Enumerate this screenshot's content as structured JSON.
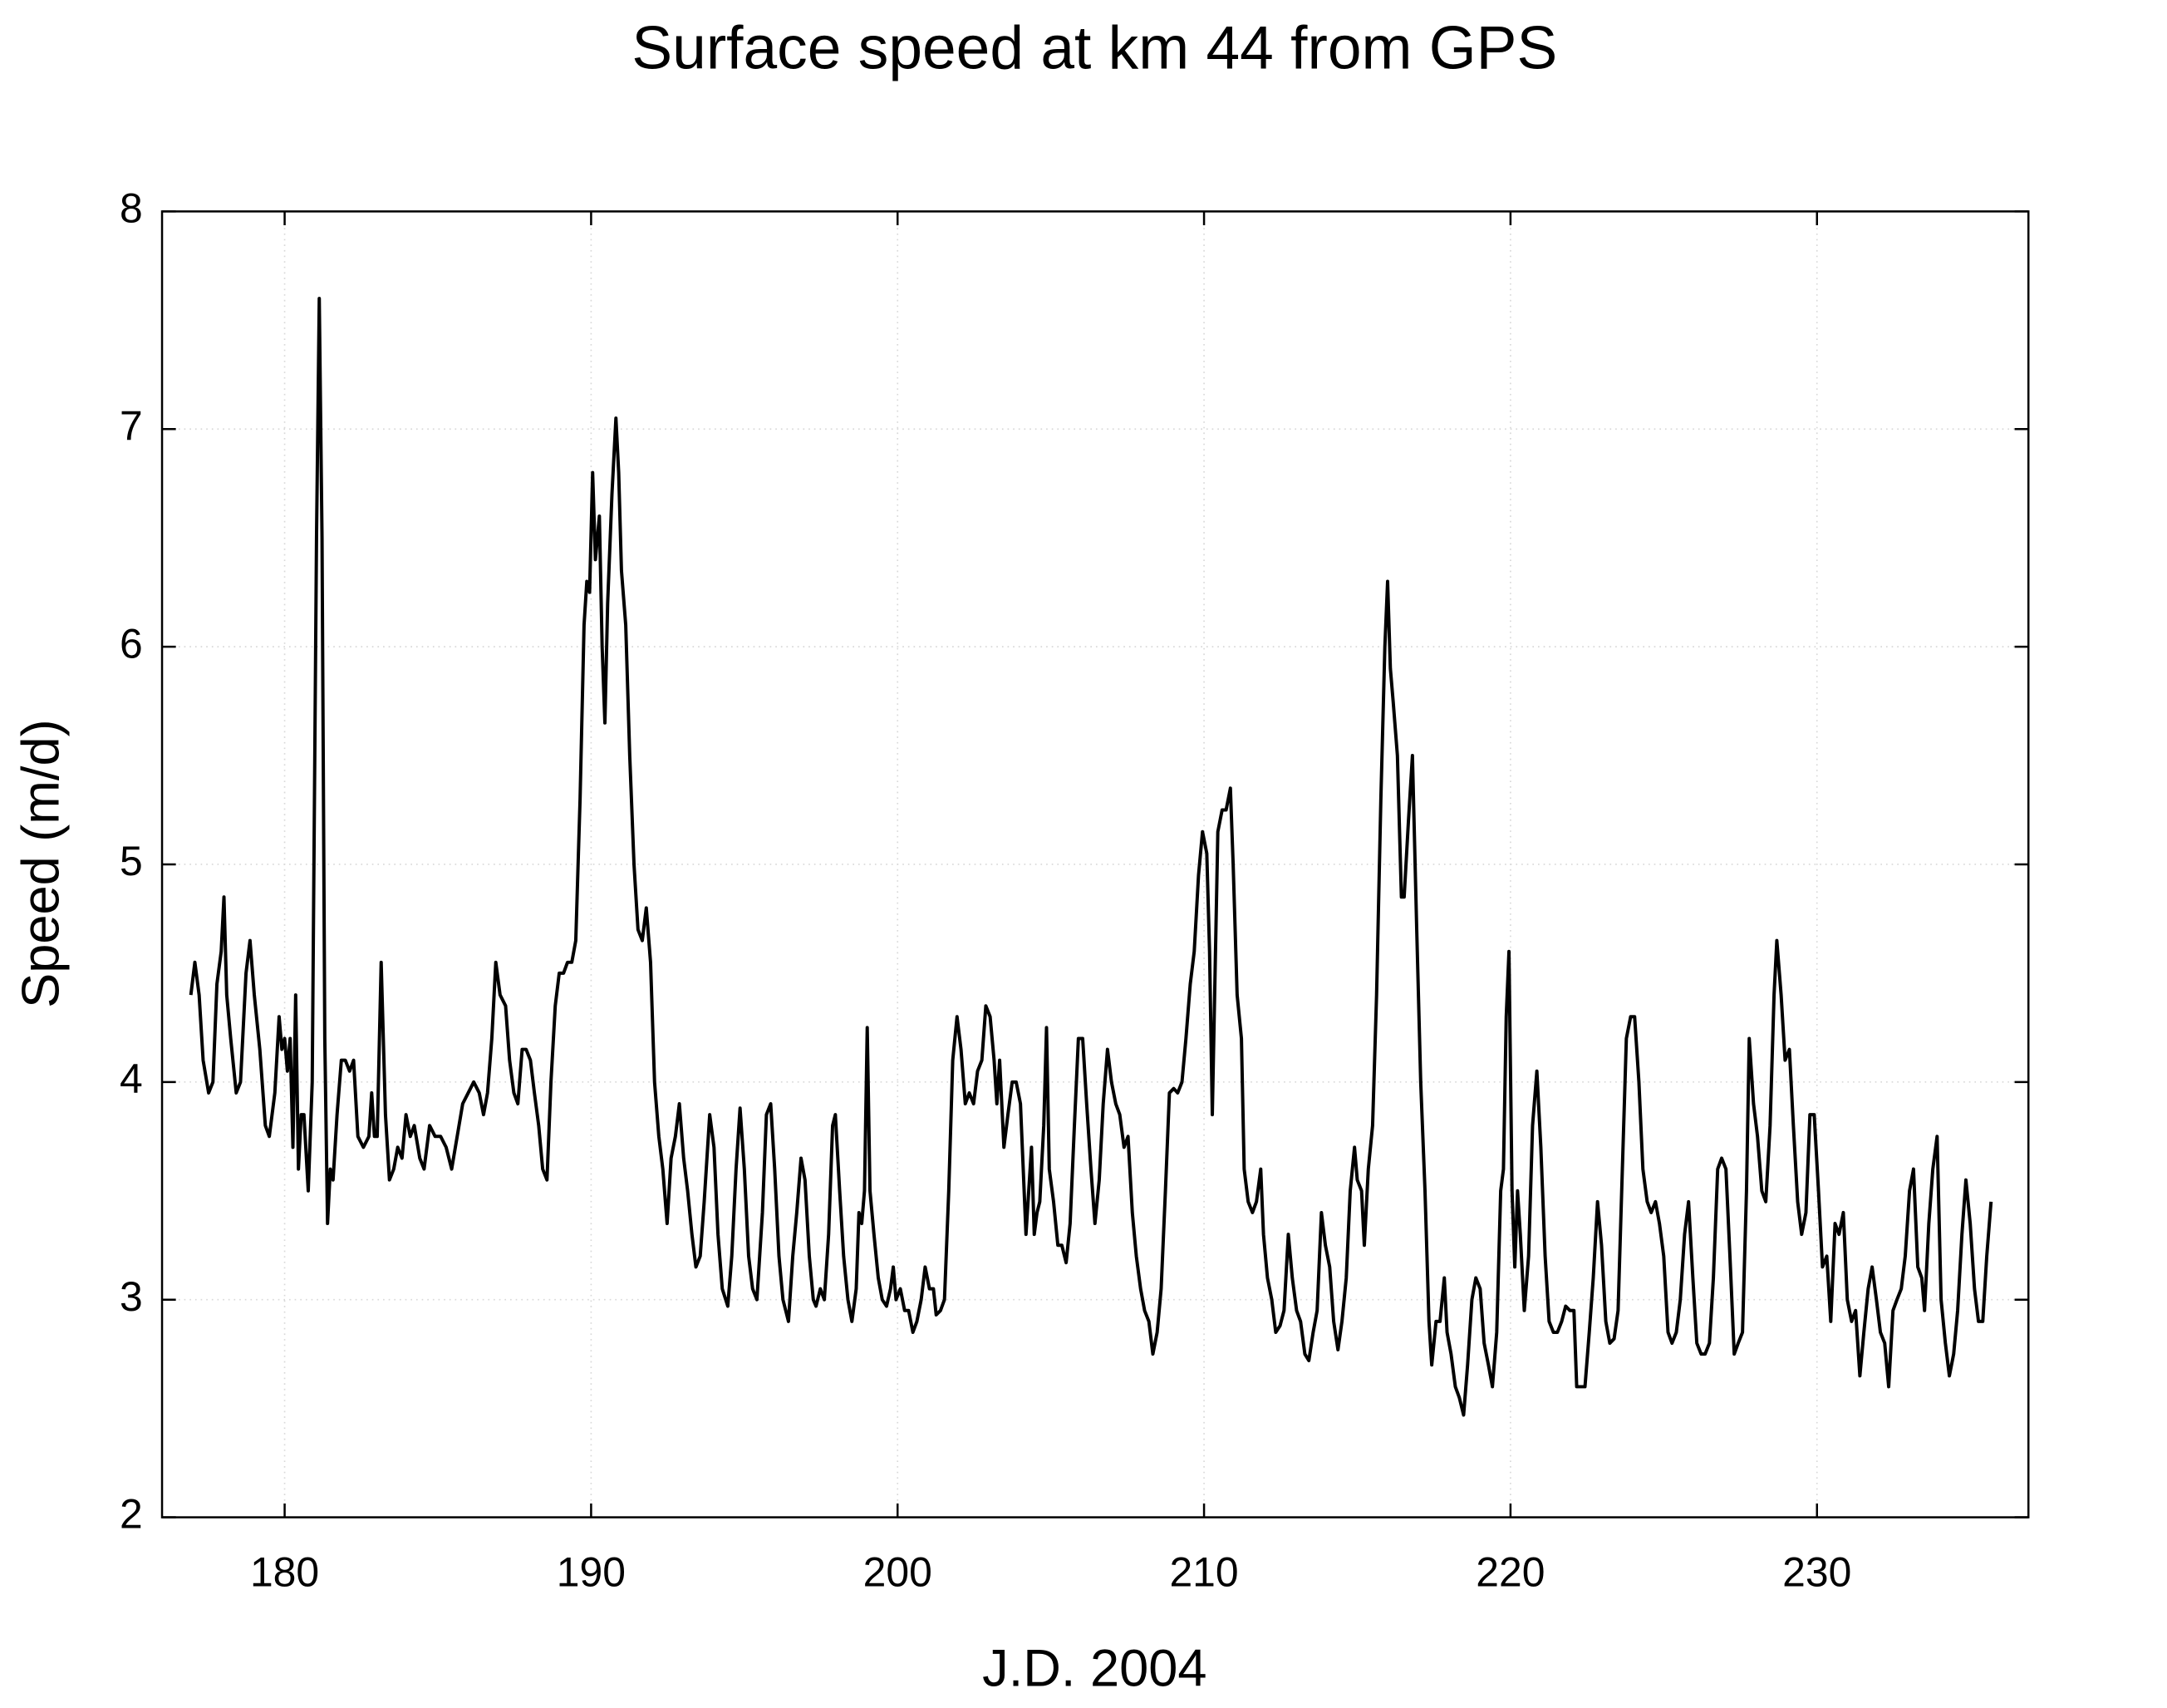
{
  "chart_data": {
    "type": "line",
    "title": "Surface speed at km 44 from GPS",
    "x_label": "J.D. 2004",
    "y_label": "Speed (m/d)",
    "xlim": [
      176,
      236.9
    ],
    "ylim": [
      2,
      8
    ],
    "xticks": [
      180,
      190,
      200,
      210,
      220,
      230
    ],
    "yticks": [
      2,
      3,
      4,
      5,
      6,
      7,
      8
    ],
    "grid": true,
    "x": [
      176.94,
      177.07,
      177.21,
      177.34,
      177.52,
      177.66,
      177.79,
      177.93,
      178.02,
      178.11,
      178.24,
      178.42,
      178.56,
      178.74,
      178.87,
      179.01,
      179.19,
      179.37,
      179.5,
      179.68,
      179.82,
      179.91,
      180.0,
      180.09,
      180.18,
      180.27,
      180.36,
      180.45,
      180.54,
      180.63,
      180.77,
      180.9,
      181.04,
      181.13,
      181.22,
      181.31,
      181.4,
      181.49,
      181.58,
      181.71,
      181.85,
      181.98,
      182.12,
      182.25,
      182.39,
      182.57,
      182.75,
      182.84,
      182.93,
      183.02,
      183.15,
      183.29,
      183.42,
      183.56,
      183.69,
      183.83,
      183.96,
      184.1,
      184.23,
      184.41,
      184.55,
      184.73,
      184.91,
      185.09,
      185.27,
      185.45,
      185.63,
      185.81,
      185.99,
      186.17,
      186.35,
      186.49,
      186.62,
      186.76,
      186.89,
      187.03,
      187.21,
      187.34,
      187.48,
      187.61,
      187.75,
      187.88,
      188.02,
      188.15,
      188.29,
      188.42,
      188.56,
      188.69,
      188.83,
      188.96,
      189.1,
      189.23,
      189.37,
      189.5,
      189.64,
      189.77,
      189.86,
      189.95,
      190.05,
      190.14,
      190.27,
      190.36,
      190.45,
      190.54,
      190.68,
      190.81,
      190.9,
      190.99,
      191.13,
      191.26,
      191.4,
      191.53,
      191.67,
      191.8,
      191.94,
      192.07,
      192.21,
      192.34,
      192.48,
      192.61,
      192.75,
      192.88,
      193.02,
      193.15,
      193.29,
      193.42,
      193.56,
      193.69,
      193.87,
      194.01,
      194.14,
      194.28,
      194.46,
      194.59,
      194.73,
      194.86,
      195.0,
      195.14,
      195.27,
      195.41,
      195.59,
      195.72,
      195.86,
      195.99,
      196.13,
      196.26,
      196.44,
      196.58,
      196.71,
      196.85,
      196.98,
      197.12,
      197.25,
      197.34,
      197.48,
      197.61,
      197.75,
      197.88,
      197.97,
      198.11,
      198.24,
      198.38,
      198.51,
      198.65,
      198.74,
      198.83,
      198.92,
      199.01,
      199.1,
      199.23,
      199.37,
      199.5,
      199.64,
      199.77,
      199.86,
      199.95,
      200.09,
      200.23,
      200.36,
      200.5,
      200.63,
      200.77,
      200.9,
      201.04,
      201.17,
      201.26,
      201.4,
      201.53,
      201.67,
      201.8,
      201.94,
      202.07,
      202.21,
      202.34,
      202.48,
      202.61,
      202.75,
      202.88,
      203.02,
      203.15,
      203.24,
      203.33,
      203.47,
      203.6,
      203.74,
      203.87,
      204.01,
      204.1,
      204.19,
      204.28,
      204.37,
      204.46,
      204.55,
      204.64,
      204.77,
      204.86,
      204.95,
      205.09,
      205.23,
      205.36,
      205.5,
      205.63,
      205.77,
      205.9,
      206.04,
      206.17,
      206.31,
      206.44,
      206.58,
      206.71,
      206.85,
      206.98,
      207.12,
      207.25,
      207.39,
      207.52,
      207.66,
      207.79,
      207.93,
      208.06,
      208.2,
      208.33,
      208.47,
      208.6,
      208.74,
      208.87,
      209.01,
      209.14,
      209.28,
      209.41,
      209.55,
      209.68,
      209.82,
      209.95,
      210.09,
      210.18,
      210.27,
      210.36,
      210.45,
      210.59,
      210.72,
      210.86,
      210.95,
      211.08,
      211.22,
      211.31,
      211.44,
      211.58,
      211.71,
      211.85,
      211.94,
      212.07,
      212.21,
      212.34,
      212.48,
      212.61,
      212.75,
      212.88,
      213.02,
      213.15,
      213.29,
      213.42,
      213.56,
      213.69,
      213.83,
      213.96,
      214.1,
      214.23,
      214.37,
      214.5,
      214.64,
      214.77,
      214.91,
      215.0,
      215.14,
      215.23,
      215.36,
      215.5,
      215.63,
      215.77,
      215.9,
      215.99,
      216.08,
      216.17,
      216.31,
      216.44,
      216.53,
      216.67,
      216.8,
      216.94,
      217.07,
      217.21,
      217.34,
      217.43,
      217.57,
      217.7,
      217.84,
      217.93,
      218.06,
      218.2,
      218.33,
      218.47,
      218.6,
      218.74,
      218.87,
      219.01,
      219.14,
      219.28,
      219.41,
      219.55,
      219.68,
      219.77,
      219.86,
      219.95,
      220.05,
      220.14,
      220.23,
      220.32,
      220.45,
      220.59,
      220.72,
      220.86,
      220.99,
      221.13,
      221.26,
      221.4,
      221.53,
      221.67,
      221.8,
      221.94,
      222.07,
      222.16,
      222.3,
      222.43,
      222.57,
      222.7,
      222.84,
      222.97,
      223.11,
      223.24,
      223.38,
      223.51,
      223.65,
      223.78,
      223.92,
      224.05,
      224.19,
      224.32,
      224.46,
      224.59,
      224.73,
      224.86,
      225.0,
      225.14,
      225.27,
      225.41,
      225.54,
      225.68,
      225.81,
      225.95,
      226.08,
      226.22,
      226.35,
      226.49,
      226.62,
      226.76,
      226.89,
      227.03,
      227.16,
      227.3,
      227.43,
      227.57,
      227.7,
      227.79,
      227.93,
      228.06,
      228.2,
      228.33,
      228.47,
      228.6,
      228.69,
      228.83,
      228.96,
      229.1,
      229.23,
      229.37,
      229.5,
      229.64,
      229.77,
      229.91,
      230.05,
      230.18,
      230.32,
      230.45,
      230.59,
      230.72,
      230.86,
      230.99,
      231.13,
      231.26,
      231.4,
      231.53,
      231.67,
      231.8,
      231.94,
      232.07,
      232.21,
      232.34,
      232.48,
      232.61,
      232.75,
      232.88,
      233.02,
      233.15,
      233.29,
      233.42,
      233.51,
      233.65,
      233.78,
      233.92,
      234.05,
      234.19,
      234.32,
      234.46,
      234.59,
      234.73,
      234.86,
      235.0,
      235.14,
      235.27,
      235.41,
      235.54,
      235.68
    ],
    "series": [
      {
        "name": "Speed",
        "color": "#000000",
        "values": [
          4.4,
          4.55,
          4.4,
          4.1,
          3.95,
          4.0,
          4.45,
          4.6,
          4.85,
          4.4,
          4.2,
          3.95,
          4.0,
          4.5,
          4.65,
          4.4,
          4.15,
          3.8,
          3.75,
          3.95,
          4.3,
          4.15,
          4.2,
          4.05,
          4.2,
          3.7,
          4.4,
          3.6,
          3.85,
          3.85,
          3.5,
          4.0,
          6.5,
          7.6,
          6.5,
          4.2,
          3.35,
          3.6,
          3.55,
          3.85,
          4.1,
          4.1,
          4.05,
          4.1,
          3.75,
          3.7,
          3.75,
          3.95,
          3.75,
          3.75,
          4.55,
          3.85,
          3.55,
          3.6,
          3.7,
          3.65,
          3.85,
          3.75,
          3.8,
          3.65,
          3.6,
          3.8,
          3.75,
          3.75,
          3.7,
          3.6,
          3.75,
          3.9,
          3.95,
          4.0,
          3.95,
          3.85,
          3.95,
          4.2,
          4.55,
          4.4,
          4.35,
          4.1,
          3.95,
          3.9,
          4.15,
          4.15,
          4.1,
          3.95,
          3.8,
          3.6,
          3.55,
          4.0,
          4.35,
          4.5,
          4.5,
          4.55,
          4.55,
          4.65,
          5.3,
          6.1,
          6.3,
          6.25,
          6.8,
          6.4,
          6.6,
          6.0,
          5.65,
          6.2,
          6.7,
          7.05,
          6.8,
          6.35,
          6.1,
          5.5,
          5.0,
          4.7,
          4.65,
          4.8,
          4.55,
          4.0,
          3.75,
          3.6,
          3.35,
          3.65,
          3.75,
          3.9,
          3.65,
          3.5,
          3.3,
          3.15,
          3.2,
          3.45,
          3.85,
          3.7,
          3.3,
          3.05,
          2.97,
          3.2,
          3.6,
          3.88,
          3.6,
          3.2,
          3.05,
          3.0,
          3.4,
          3.85,
          3.9,
          3.6,
          3.2,
          3.0,
          2.9,
          3.2,
          3.4,
          3.65,
          3.55,
          3.2,
          3.0,
          2.97,
          3.05,
          3.0,
          3.3,
          3.8,
          3.85,
          3.5,
          3.2,
          3.0,
          2.9,
          3.05,
          3.4,
          3.35,
          3.5,
          4.25,
          3.5,
          3.3,
          3.1,
          3.0,
          2.97,
          3.05,
          3.15,
          3.0,
          3.05,
          2.95,
          2.95,
          2.85,
          2.9,
          3.0,
          3.15,
          3.05,
          3.05,
          2.93,
          2.95,
          3.0,
          3.5,
          4.1,
          4.3,
          4.15,
          3.9,
          3.95,
          3.9,
          4.05,
          4.1,
          4.35,
          4.3,
          4.1,
          3.9,
          4.1,
          3.7,
          3.85,
          4.0,
          4.0,
          3.9,
          3.6,
          3.3,
          3.5,
          3.7,
          3.3,
          3.4,
          3.45,
          3.8,
          4.25,
          3.6,
          3.45,
          3.25,
          3.25,
          3.17,
          3.35,
          3.8,
          4.2,
          4.2,
          3.9,
          3.6,
          3.35,
          3.55,
          3.9,
          4.15,
          4.0,
          3.9,
          3.85,
          3.7,
          3.75,
          3.4,
          3.2,
          3.05,
          2.95,
          2.9,
          2.75,
          2.85,
          3.05,
          3.5,
          3.95,
          3.97,
          3.95,
          4.0,
          4.2,
          4.45,
          4.6,
          4.95,
          5.15,
          5.05,
          4.6,
          3.85,
          4.5,
          5.15,
          5.25,
          5.25,
          5.35,
          5.0,
          4.4,
          4.2,
          3.6,
          3.45,
          3.4,
          3.45,
          3.6,
          3.3,
          3.1,
          3.0,
          2.85,
          2.88,
          2.95,
          3.3,
          3.1,
          2.95,
          2.9,
          2.75,
          2.72,
          2.85,
          2.95,
          3.4,
          3.25,
          3.15,
          2.9,
          2.77,
          2.9,
          3.1,
          3.5,
          3.7,
          3.55,
          3.5,
          3.25,
          3.6,
          3.8,
          4.4,
          5.3,
          6.0,
          6.3,
          5.9,
          5.75,
          5.5,
          4.85,
          4.85,
          5.2,
          5.5,
          4.7,
          4.0,
          3.5,
          2.9,
          2.7,
          2.9,
          2.9,
          3.1,
          2.85,
          2.75,
          2.6,
          2.55,
          2.47,
          2.7,
          3.0,
          3.1,
          3.05,
          2.8,
          2.7,
          2.6,
          2.85,
          3.5,
          3.6,
          4.3,
          4.6,
          3.5,
          3.15,
          3.5,
          3.3,
          2.95,
          3.2,
          3.8,
          4.05,
          3.7,
          3.2,
          2.9,
          2.85,
          2.85,
          2.9,
          2.97,
          2.95,
          2.95,
          2.6,
          2.6,
          2.6,
          2.85,
          3.1,
          3.45,
          3.25,
          2.9,
          2.8,
          2.82,
          2.95,
          3.6,
          4.2,
          4.3,
          4.3,
          4.0,
          3.6,
          3.45,
          3.4,
          3.45,
          3.35,
          3.2,
          2.85,
          2.8,
          2.85,
          3.0,
          3.3,
          3.45,
          3.1,
          2.8,
          2.75,
          2.75,
          2.8,
          3.1,
          3.6,
          3.65,
          3.6,
          3.2,
          2.75,
          2.8,
          2.85,
          3.5,
          4.2,
          3.9,
          3.75,
          3.5,
          3.45,
          3.8,
          4.4,
          4.65,
          4.4,
          4.1,
          4.15,
          3.8,
          3.45,
          3.3,
          3.4,
          3.85,
          3.85,
          3.5,
          3.15,
          3.2,
          2.9,
          3.35,
          3.3,
          3.4,
          3.0,
          2.9,
          2.95,
          2.65,
          2.85,
          3.05,
          3.15,
          3.0,
          2.85,
          2.8,
          2.6,
          2.95,
          3.0,
          3.05,
          3.2,
          3.5,
          3.6,
          3.15,
          3.1,
          2.95,
          3.35,
          3.6,
          3.75,
          3.0,
          2.8,
          2.65,
          2.75,
          2.95,
          3.3,
          3.55,
          3.35,
          3.05,
          2.9,
          2.9,
          3.2,
          3.45
        ]
      }
    ]
  }
}
